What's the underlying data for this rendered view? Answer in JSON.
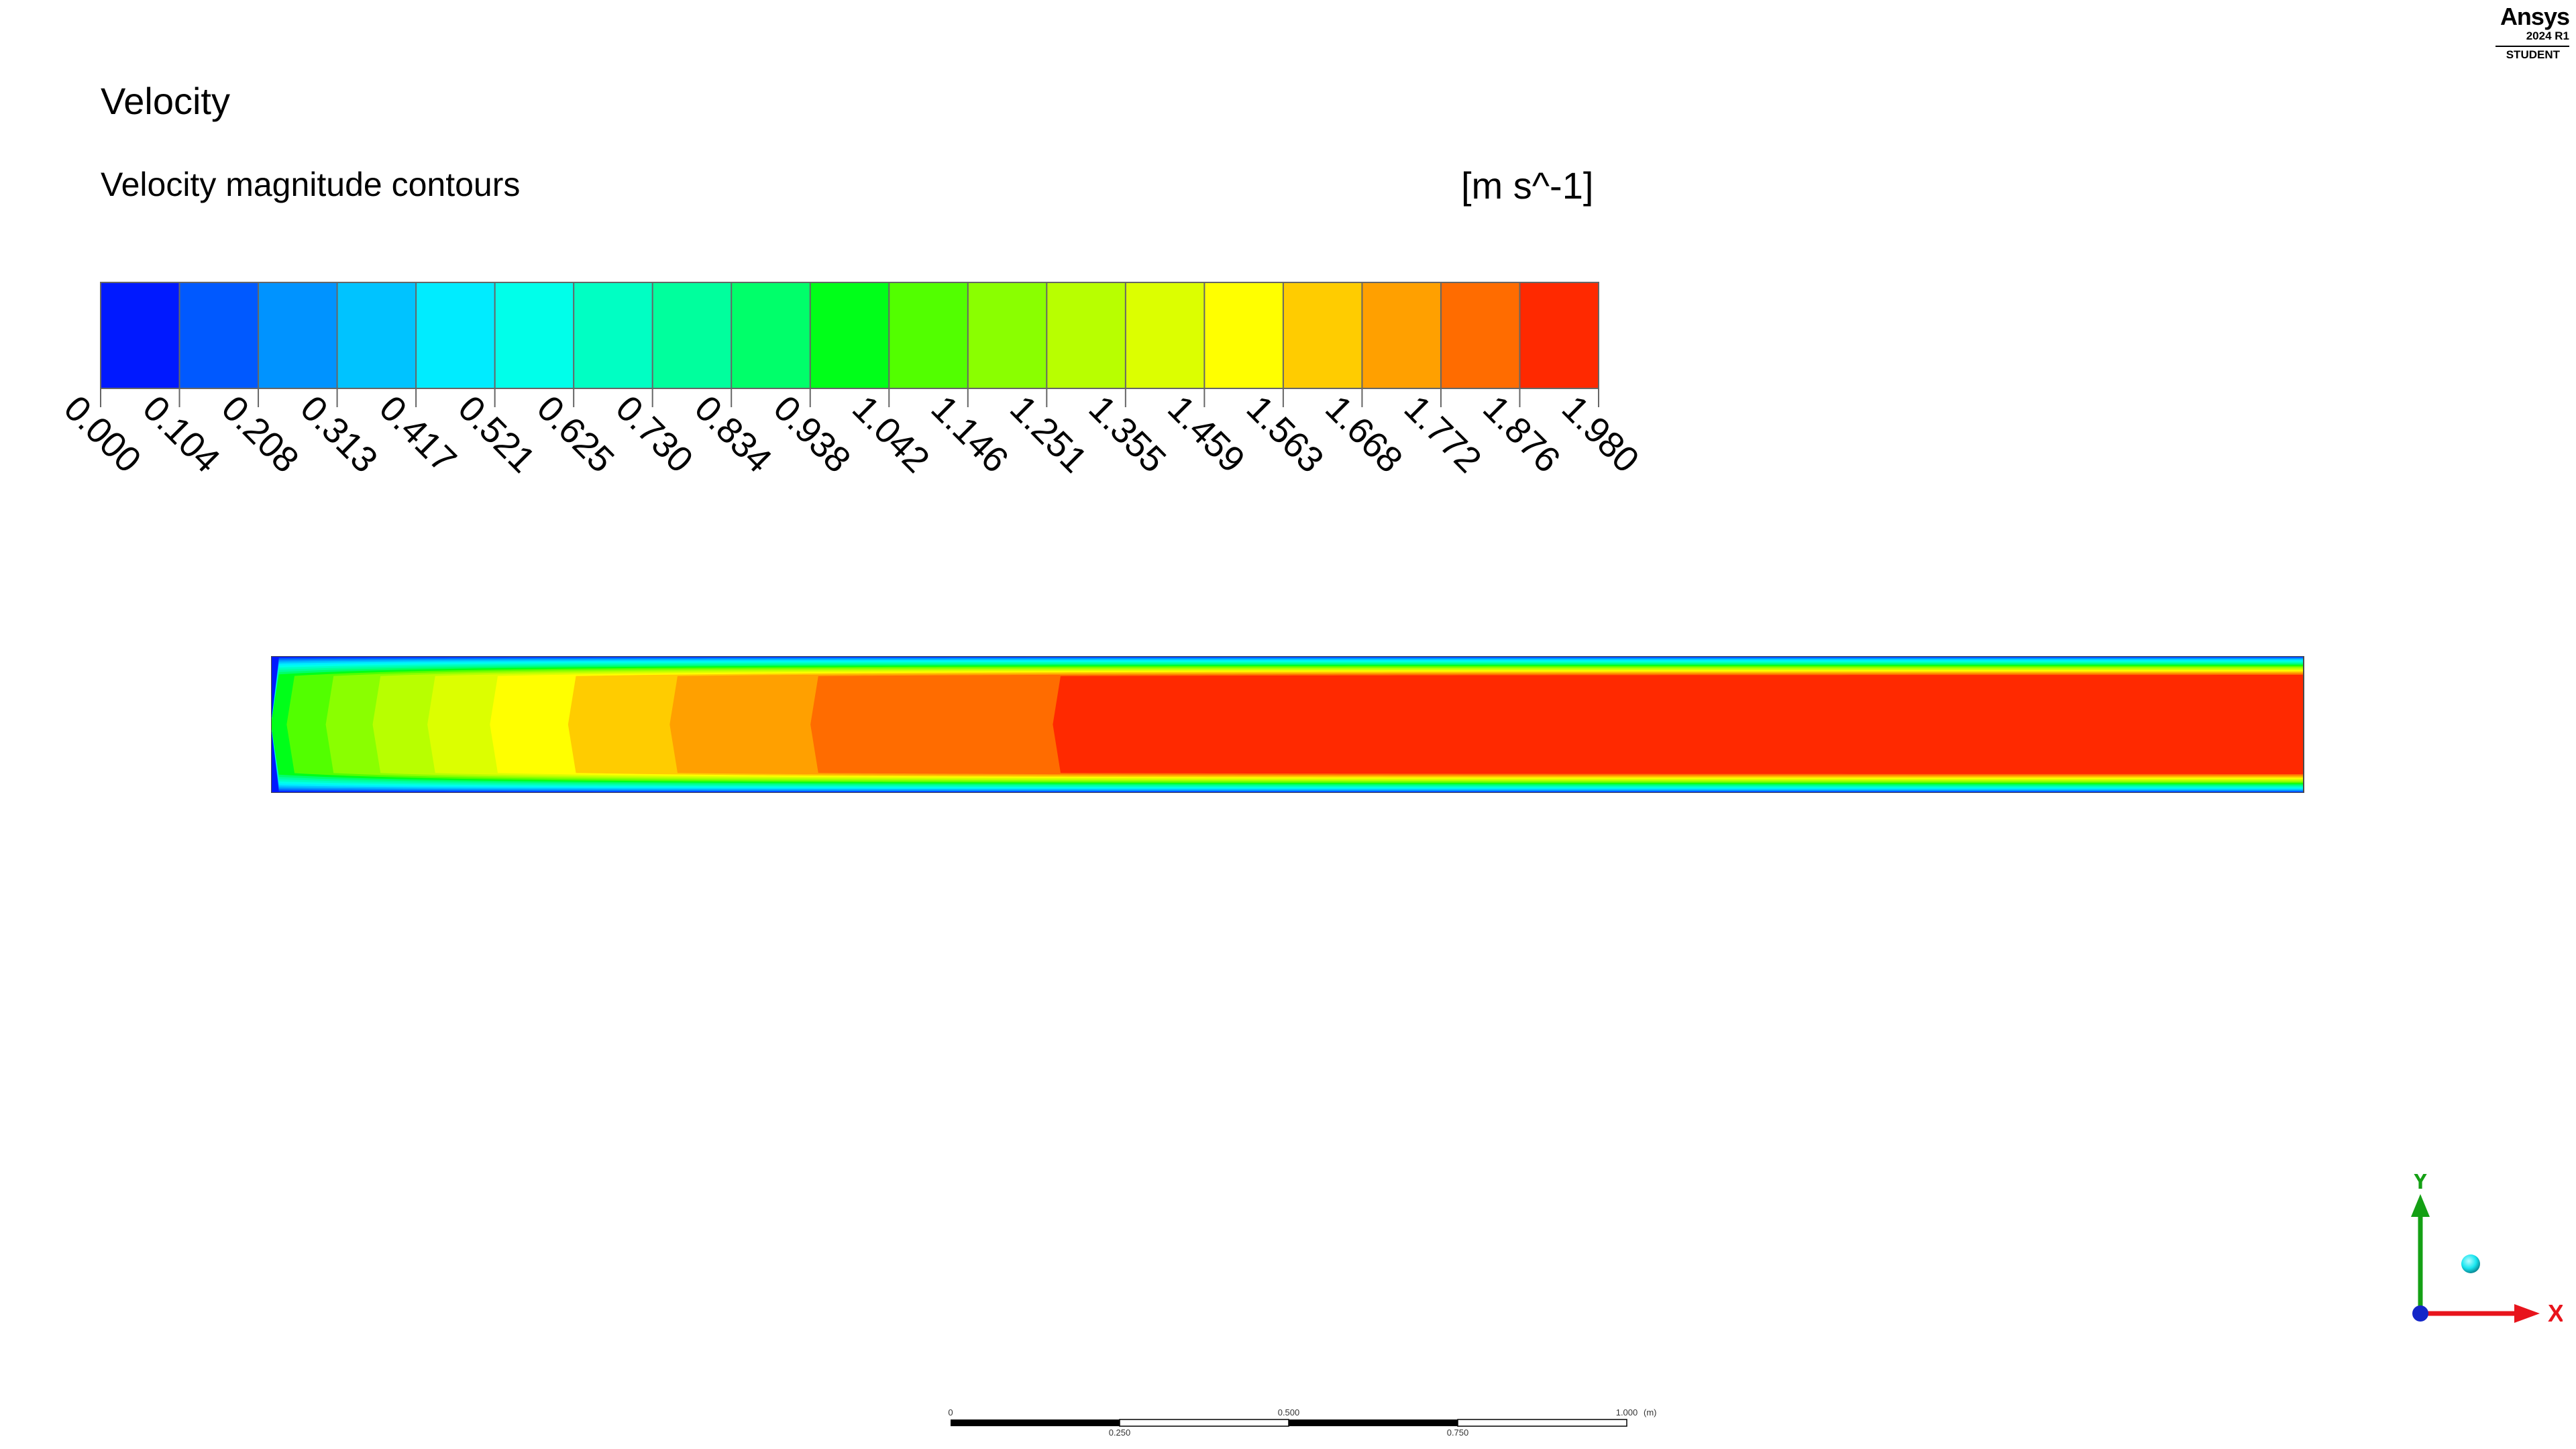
{
  "title": "Velocity",
  "subtitle": "Velocity magnitude contours",
  "units": "[m s^-1]",
  "brand": {
    "name": "Ansys",
    "version": "2024 R1",
    "edition": "STUDENT"
  },
  "legend": {
    "colors": [
      "#0019ff",
      "#0059ff",
      "#0093ff",
      "#00c3ff",
      "#00ecff",
      "#00ffea",
      "#00ffc3",
      "#00ff9d",
      "#00ff6a",
      "#00ff19",
      "#52ff00",
      "#8aff00",
      "#b8ff00",
      "#dcff00",
      "#ffff00",
      "#ffcc00",
      "#ffa000",
      "#ff6c00",
      "#ff2900"
    ],
    "labels": [
      "0.000",
      "0.104",
      "0.208",
      "0.313",
      "0.417",
      "0.521",
      "0.625",
      "0.730",
      "0.834",
      "0.938",
      "1.042",
      "1.146",
      "1.251",
      "1.355",
      "1.459",
      "1.563",
      "1.668",
      "1.772",
      "1.876",
      "1.980"
    ]
  },
  "scale_bar": {
    "top_labels": [
      "0",
      "0.500",
      "1.000"
    ],
    "unit": "(m)",
    "bottom_labels": [
      "0.250",
      "0.750"
    ]
  },
  "axes_triad": {
    "x_label": "X",
    "y_label": "Y",
    "x_color": "#e8141c",
    "y_color": "#14a014",
    "z_color": "#1426c8",
    "point_color": "#19e6f0"
  }
}
